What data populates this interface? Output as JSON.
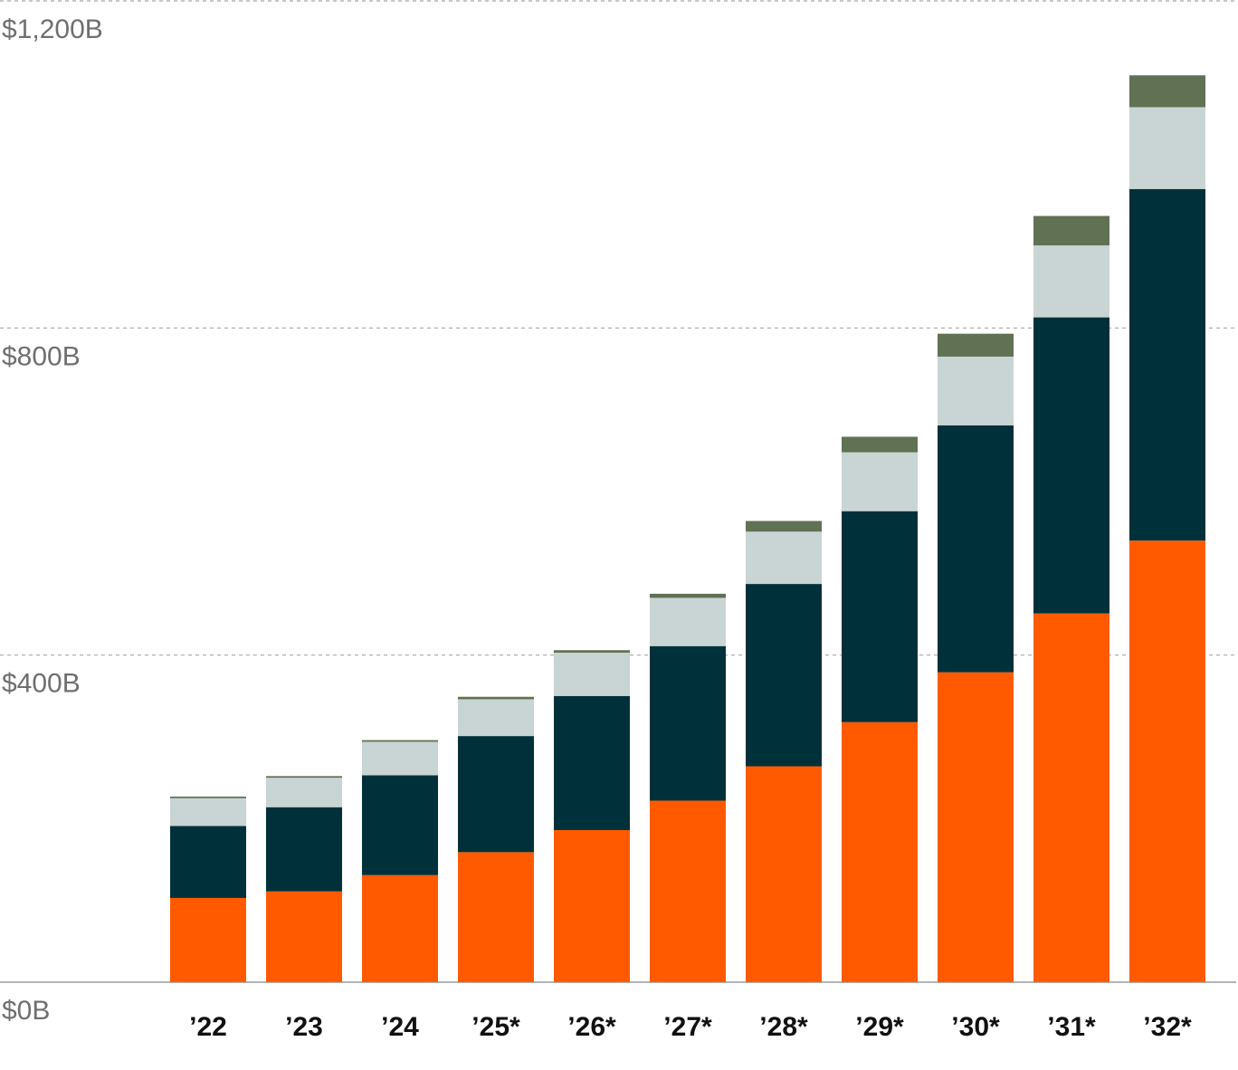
{
  "chart_data": {
    "type": "bar",
    "stacked": true,
    "categories": [
      "’22",
      "’23",
      "’24",
      "’25*",
      "’26*",
      "’27*",
      "’28*",
      "’29*",
      "’30*",
      "’31*",
      "’32*"
    ],
    "series": [
      {
        "color": "#ff5a00",
        "values": [
          103,
          111,
          131,
          159,
          186,
          222,
          264,
          318,
          379,
          451,
          540
        ]
      },
      {
        "color": "#00313a",
        "values": [
          88,
          103,
          122,
          142,
          164,
          189,
          223,
          258,
          302,
          362,
          430
        ]
      },
      {
        "color": "#c8d5d4",
        "values": [
          34,
          36,
          41,
          45,
          53,
          59,
          64,
          72,
          84,
          88,
          100
        ]
      },
      {
        "color": "#607154",
        "values": [
          2,
          2,
          2,
          3,
          3,
          5,
          13,
          19,
          28,
          36,
          39
        ]
      }
    ],
    "yticks": [
      {
        "value": 0,
        "label": "$0B"
      },
      {
        "value": 400,
        "label": "$400B"
      },
      {
        "value": 800,
        "label": "$800B"
      },
      {
        "value": 1200,
        "label": "$1,200B"
      }
    ],
    "ylim": [
      0,
      1200
    ],
    "grid": true,
    "legend": "none"
  }
}
